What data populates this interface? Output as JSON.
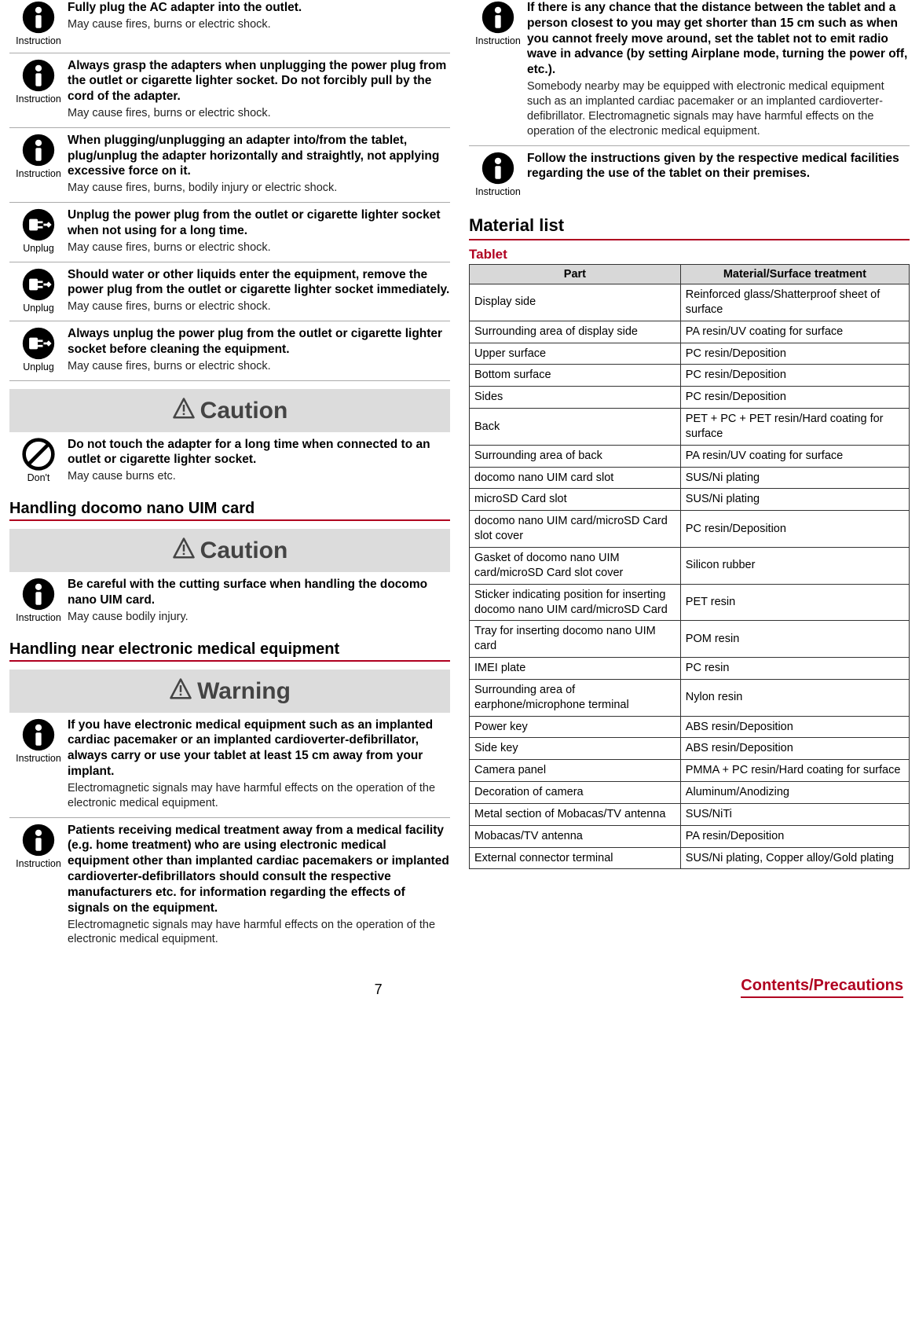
{
  "icons": {
    "instruction_label": "Instruction",
    "unplug_label": "Unplug",
    "dont_label": "Don't"
  },
  "banners": {
    "caution": "Caution",
    "warning": "Warning"
  },
  "left_items_a": [
    {
      "icon": "instruction",
      "bold": "Fully plug the AC adapter into the outlet.",
      "sub": "May cause fires, burns or electric shock."
    },
    {
      "icon": "instruction",
      "bold": "Always grasp the adapters when unplugging the power plug from the outlet or cigarette lighter socket. Do not forcibly pull by the cord of the adapter.",
      "sub": "May cause fires, burns or electric shock."
    },
    {
      "icon": "instruction",
      "bold": "When plugging/unplugging an adapter into/from the tablet, plug/unplug the adapter horizontally and straightly, not applying excessive force on it.",
      "sub": "May cause fires, burns, bodily injury or electric shock."
    },
    {
      "icon": "unplug",
      "bold": "Unplug the power plug from the outlet or cigarette lighter socket when not using for a long time.",
      "sub": "May cause fires, burns or electric shock."
    },
    {
      "icon": "unplug",
      "bold": "Should water or other liquids enter the equipment, remove the power plug from the outlet or cigarette lighter socket immediately.",
      "sub": "May cause fires, burns or electric shock."
    },
    {
      "icon": "unplug",
      "bold": "Always unplug the power plug from the outlet or cigarette lighter socket before cleaning the equipment.",
      "sub": "May cause fires, burns or electric shock."
    }
  ],
  "left_caution_1": [
    {
      "icon": "dont",
      "bold": "Do not touch the adapter for a long time when connected to an outlet or cigarette lighter socket.",
      "sub": "May cause burns etc."
    }
  ],
  "left_section_uim": "Handling docomo nano UIM card",
  "left_caution_2": [
    {
      "icon": "instruction",
      "bold": "Be careful with the cutting surface when handling the docomo nano UIM card.",
      "sub": "May cause bodily injury."
    }
  ],
  "left_section_med": "Handling near electronic medical equipment",
  "left_warning": [
    {
      "icon": "instruction",
      "bold": "If you have electronic medical equipment such as an implanted cardiac pacemaker or an implanted cardioverter-defibrillator, always carry or use your tablet at least 15 cm away from your implant.",
      "sub": "Electromagnetic signals may have harmful effects on the operation of the electronic medical equipment."
    },
    {
      "icon": "instruction",
      "bold": "Patients receiving medical treatment away from a medical facility (e.g. home treatment) who are using electronic medical equipment other than implanted cardiac pacemakers or implanted cardioverter-defibrillators should consult the respective manufacturers etc. for information regarding the effects of signals on the equipment.",
      "sub": "Electromagnetic signals may have harmful effects on the operation of the electronic medical equipment."
    }
  ],
  "right_items_top": [
    {
      "icon": "instruction",
      "bold": "If there is any chance that the distance between the tablet and a person closest to you may get shorter than 15 cm such as when you cannot freely move around, set the tablet not to emit radio wave in advance (by setting Airplane mode, turning the power off, etc.).",
      "sub": "Somebody nearby may be equipped with electronic medical equipment such as an implanted cardiac pacemaker or an implanted cardioverter-defibrillator. Electromagnetic signals may have harmful effects on the operation of the electronic medical equipment."
    },
    {
      "icon": "instruction",
      "bold": "Follow the instructions given by the respective medical facilities regarding the use of the tablet on their premises.",
      "sub": ""
    }
  ],
  "material_heading": "Material list",
  "tablet_heading": "Tablet",
  "table": {
    "head_part": "Part",
    "head_mat": "Material/Surface treatment",
    "rows": [
      [
        "Display side",
        "Reinforced glass/Shatterproof sheet of surface"
      ],
      [
        "Surrounding area of display side",
        "PA resin/UV coating for surface"
      ],
      [
        "Upper surface",
        "PC resin/Deposition"
      ],
      [
        "Bottom surface",
        "PC resin/Deposition"
      ],
      [
        "Sides",
        "PC resin/Deposition"
      ],
      [
        "Back",
        "PET + PC + PET resin/Hard coating for surface"
      ],
      [
        "Surrounding area of back",
        "PA resin/UV coating for surface"
      ],
      [
        "docomo nano UIM card slot",
        "SUS/Ni plating"
      ],
      [
        "microSD Card slot",
        "SUS/Ni plating"
      ],
      [
        "docomo nano UIM card/microSD Card slot cover",
        "PC resin/Deposition"
      ],
      [
        "Gasket of docomo nano UIM card/microSD Card slot cover",
        "Silicon rubber"
      ],
      [
        "Sticker indicating position for inserting docomo nano UIM card/microSD Card",
        "PET resin"
      ],
      [
        "Tray for inserting docomo nano UIM card",
        "POM resin"
      ],
      [
        "IMEI plate",
        "PC resin"
      ],
      [
        "Surrounding area of earphone/microphone terminal",
        "Nylon resin"
      ],
      [
        "Power key",
        "ABS resin/Deposition"
      ],
      [
        "Side key",
        "ABS resin/Deposition"
      ],
      [
        "Camera panel",
        "PMMA + PC resin/Hard coating for surface"
      ],
      [
        "Decoration of camera",
        "Aluminum/Anodizing"
      ],
      [
        "Metal section of Mobacas/TV antenna",
        "SUS/NiTi"
      ],
      [
        "Mobacas/TV antenna",
        "PA resin/Deposition"
      ],
      [
        "External connector terminal",
        "SUS/Ni plating, Copper alloy/Gold plating"
      ]
    ]
  },
  "footer": {
    "page": "7",
    "crumb": "Contents/Precautions"
  }
}
